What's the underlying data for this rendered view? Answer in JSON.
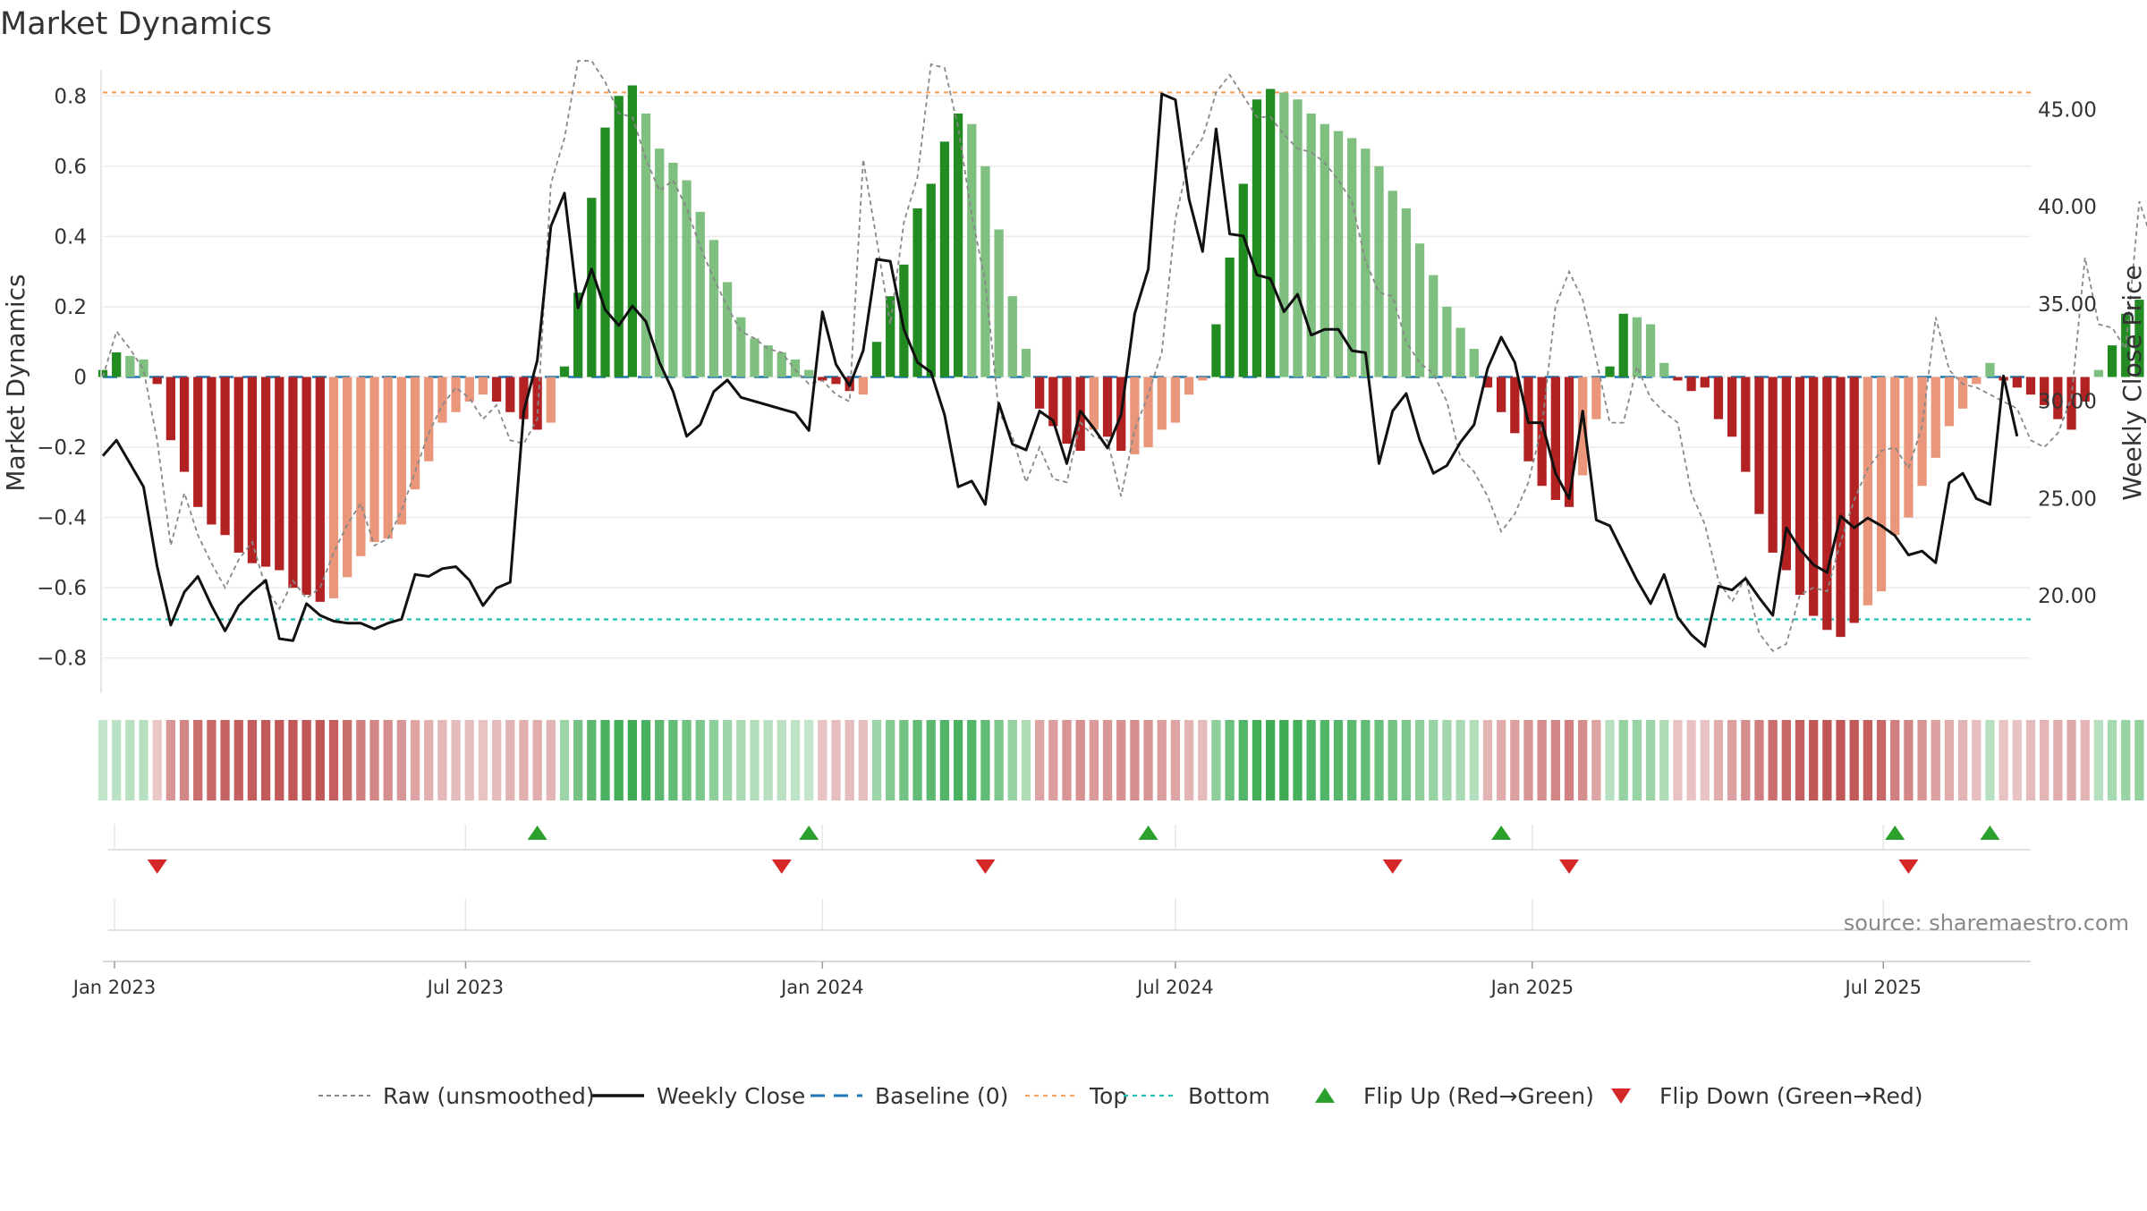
{
  "title": "Market Dynamics",
  "source": "source: sharemaestro.com",
  "colors": {
    "green_strong": "#228B22",
    "green_light": "#7FBF7F",
    "red_strong": "#B22222",
    "red_light": "#E9967A",
    "baseline": "#1f77b4",
    "top": "#f4a460",
    "bottom": "#20c0b0",
    "raw": "#888888",
    "close": "#111111",
    "flip_up": "#2ca02c",
    "flip_down": "#d62728"
  },
  "chart_data": {
    "type": "bar",
    "title": "Market Dynamics",
    "ylabel": "Market Dynamics",
    "y2label": "Weekly Close Price",
    "ylim": [
      -0.9,
      0.9
    ],
    "y2lim": [
      15.0,
      47.5
    ],
    "yticks": [
      -0.8,
      -0.6,
      -0.4,
      -0.2,
      0,
      0.2,
      0.4,
      0.6,
      0.8
    ],
    "ytick_labels": [
      "−0.8",
      "−0.6",
      "−0.4",
      "−0.2",
      "0",
      "0.2",
      "0.4",
      "0.6",
      "0.8"
    ],
    "y2ticks": [
      20,
      25,
      30,
      35,
      40,
      45
    ],
    "y2tick_labels": [
      "20.00",
      "25.00",
      "30.00",
      "35.00",
      "40.00",
      "45.00"
    ],
    "x_start": "2022-12-26",
    "x_end": "2025-09-15",
    "xticks": [
      "2023-01-01",
      "2023-07-01",
      "2024-01-01",
      "2024-07-01",
      "2025-01-01",
      "2025-07-01"
    ],
    "xtick_labels": [
      "Jan 2023",
      "Jul 2023",
      "Jan 2024",
      "Jul 2024",
      "Jan 2025",
      "Jul 2025"
    ],
    "top_level": 0.81,
    "bottom_level": -0.69,
    "baseline": 0,
    "bar_values": [
      0.02,
      0.07,
      0.06,
      0.05,
      -0.02,
      -0.18,
      -0.27,
      -0.37,
      -0.42,
      -0.45,
      -0.5,
      -0.53,
      -0.54,
      -0.55,
      -0.6,
      -0.62,
      -0.64,
      -0.63,
      -0.57,
      -0.51,
      -0.47,
      -0.46,
      -0.42,
      -0.32,
      -0.24,
      -0.13,
      -0.1,
      -0.07,
      -0.05,
      -0.07,
      -0.1,
      -0.12,
      -0.15,
      -0.13,
      0.03,
      0.24,
      0.51,
      0.71,
      0.8,
      0.83,
      0.75,
      0.65,
      0.61,
      0.56,
      0.47,
      0.39,
      0.27,
      0.17,
      0.11,
      0.09,
      0.07,
      0.05,
      0.02,
      -0.01,
      -0.02,
      -0.04,
      -0.05,
      0.1,
      0.23,
      0.32,
      0.48,
      0.55,
      0.67,
      0.75,
      0.72,
      0.6,
      0.42,
      0.23,
      0.08,
      -0.09,
      -0.14,
      -0.19,
      -0.21,
      -0.15,
      -0.17,
      -0.21,
      -0.22,
      -0.2,
      -0.15,
      -0.13,
      -0.05,
      -0.01,
      0.15,
      0.34,
      0.55,
      0.79,
      0.82,
      0.81,
      0.79,
      0.75,
      0.72,
      0.7,
      0.68,
      0.65,
      0.6,
      0.53,
      0.48,
      0.38,
      0.29,
      0.2,
      0.14,
      0.08,
      -0.03,
      -0.1,
      -0.16,
      -0.24,
      -0.31,
      -0.35,
      -0.37,
      -0.28,
      -0.12,
      0.03,
      0.18,
      0.17,
      0.15,
      0.04,
      -0.01,
      -0.04,
      -0.03,
      -0.12,
      -0.17,
      -0.27,
      -0.39,
      -0.5,
      -0.55,
      -0.62,
      -0.68,
      -0.72,
      -0.74,
      -0.7,
      -0.65,
      -0.61,
      -0.45,
      -0.4,
      -0.31,
      -0.23,
      -0.14,
      -0.09,
      -0.02,
      0.04,
      -0.01,
      -0.03,
      -0.05,
      -0.08,
      -0.12,
      -0.15,
      -0.07,
      0.02,
      0.09,
      0.18,
      0.22,
      0.28
    ],
    "bar_strong": [
      true,
      true,
      false,
      false,
      true,
      true,
      true,
      true,
      true,
      true,
      true,
      true,
      true,
      true,
      true,
      true,
      true,
      false,
      false,
      false,
      false,
      false,
      false,
      false,
      false,
      false,
      false,
      false,
      false,
      true,
      true,
      true,
      true,
      false,
      true,
      true,
      true,
      true,
      true,
      true,
      false,
      false,
      false,
      false,
      false,
      false,
      false,
      false,
      false,
      false,
      false,
      false,
      false,
      true,
      true,
      true,
      false,
      true,
      true,
      true,
      true,
      true,
      true,
      true,
      false,
      false,
      false,
      false,
      false,
      true,
      true,
      true,
      true,
      false,
      true,
      true,
      false,
      false,
      false,
      false,
      false,
      false,
      true,
      true,
      true,
      true,
      true,
      false,
      false,
      false,
      false,
      false,
      false,
      false,
      false,
      false,
      false,
      false,
      false,
      false,
      false,
      false,
      true,
      true,
      true,
      true,
      true,
      true,
      true,
      false,
      false,
      true,
      true,
      false,
      false,
      false,
      true,
      true,
      true,
      true,
      true,
      true,
      true,
      true,
      true,
      true,
      true,
      true,
      true,
      true,
      false,
      false,
      false,
      false,
      false,
      false,
      false,
      false,
      false,
      false,
      true,
      true,
      true,
      true,
      true,
      true,
      true,
      false,
      true,
      true,
      true,
      true,
      true
    ],
    "heat_levels": [
      0.12,
      0.18,
      0.2,
      0.2,
      0.12,
      0.45,
      0.55,
      0.7,
      0.75,
      0.78,
      0.8,
      0.82,
      0.83,
      0.84,
      0.85,
      0.86,
      0.86,
      0.8,
      0.7,
      0.6,
      0.55,
      0.5,
      0.45,
      0.35,
      0.28,
      0.22,
      0.2,
      0.18,
      0.16,
      0.2,
      0.25,
      0.28,
      0.3,
      0.25,
      0.35,
      0.6,
      0.75,
      0.85,
      0.9,
      0.92,
      0.85,
      0.75,
      0.7,
      0.62,
      0.55,
      0.45,
      0.35,
      0.28,
      0.22,
      0.2,
      0.18,
      0.15,
      0.12,
      0.15,
      0.18,
      0.2,
      0.18,
      0.35,
      0.5,
      0.6,
      0.7,
      0.75,
      0.8,
      0.85,
      0.8,
      0.7,
      0.55,
      0.4,
      0.25,
      0.35,
      0.4,
      0.45,
      0.48,
      0.42,
      0.44,
      0.48,
      0.5,
      0.45,
      0.4,
      0.35,
      0.25,
      0.2,
      0.45,
      0.65,
      0.8,
      0.9,
      0.92,
      0.92,
      0.88,
      0.82,
      0.8,
      0.78,
      0.75,
      0.7,
      0.65,
      0.6,
      0.55,
      0.45,
      0.38,
      0.32,
      0.28,
      0.22,
      0.25,
      0.3,
      0.38,
      0.45,
      0.5,
      0.55,
      0.58,
      0.5,
      0.35,
      0.2,
      0.4,
      0.38,
      0.36,
      0.25,
      0.15,
      0.15,
      0.15,
      0.3,
      0.38,
      0.5,
      0.6,
      0.7,
      0.75,
      0.8,
      0.84,
      0.86,
      0.86,
      0.84,
      0.8,
      0.75,
      0.6,
      0.55,
      0.45,
      0.38,
      0.3,
      0.25,
      0.18,
      0.2,
      0.15,
      0.15,
      0.2,
      0.25,
      0.3,
      0.32,
      0.25,
      0.2,
      0.3,
      0.38,
      0.42,
      0.48
    ],
    "raw_values": [
      0.0,
      0.13,
      0.08,
      0.02,
      -0.18,
      -0.48,
      -0.33,
      -0.45,
      -0.53,
      -0.6,
      -0.52,
      -0.47,
      -0.6,
      -0.66,
      -0.58,
      -0.63,
      -0.6,
      -0.5,
      -0.42,
      -0.36,
      -0.48,
      -0.46,
      -0.38,
      -0.27,
      -0.16,
      -0.08,
      -0.03,
      -0.06,
      -0.12,
      -0.08,
      -0.18,
      -0.19,
      -0.12,
      0.55,
      0.68,
      0.9,
      0.9,
      0.84,
      0.75,
      0.74,
      0.62,
      0.53,
      0.56,
      0.48,
      0.37,
      0.28,
      0.2,
      0.13,
      0.11,
      0.08,
      0.07,
      0.02,
      -0.02,
      -0.01,
      -0.05,
      -0.07,
      0.62,
      0.39,
      0.15,
      0.44,
      0.57,
      0.89,
      0.88,
      0.71,
      0.46,
      0.27,
      -0.1,
      -0.17,
      -0.3,
      -0.2,
      -0.29,
      -0.3,
      -0.13,
      -0.17,
      -0.18,
      -0.34,
      -0.15,
      -0.05,
      0.07,
      0.45,
      0.62,
      0.68,
      0.81,
      0.86,
      0.8,
      0.74,
      0.74,
      0.69,
      0.65,
      0.64,
      0.61,
      0.56,
      0.5,
      0.33,
      0.24,
      0.23,
      0.1,
      0.04,
      0.01,
      -0.07,
      -0.23,
      -0.27,
      -0.34,
      -0.44,
      -0.39,
      -0.3,
      -0.14,
      0.2,
      0.3,
      0.22,
      0.05,
      -0.13,
      -0.13,
      0.03,
      -0.06,
      -0.1,
      -0.13,
      -0.33,
      -0.42,
      -0.58,
      -0.64,
      -0.57,
      -0.73,
      -0.78,
      -0.76,
      -0.62,
      -0.6,
      -0.61,
      -0.47,
      -0.35,
      -0.26,
      -0.21,
      -0.2,
      -0.26,
      -0.14,
      0.17,
      0.02,
      -0.02,
      -0.03,
      -0.05,
      -0.07,
      -0.09,
      -0.18,
      -0.2,
      -0.16,
      -0.06,
      0.34,
      0.15,
      0.14,
      0.08,
      0.5,
      0.38
    ],
    "close_values": [
      27.2,
      28.0,
      26.8,
      25.6,
      21.5,
      18.5,
      20.2,
      21.0,
      19.5,
      18.2,
      19.5,
      20.2,
      20.8,
      17.8,
      17.7,
      19.6,
      19.0,
      18.7,
      18.6,
      18.6,
      18.3,
      18.6,
      18.8,
      21.1,
      21.0,
      21.4,
      21.5,
      20.8,
      19.5,
      20.4,
      20.7,
      29.5,
      32.1,
      39.0,
      40.7,
      34.8,
      36.8,
      34.7,
      33.9,
      34.9,
      34.1,
      32.0,
      30.5,
      28.2,
      28.8,
      30.5,
      31.1,
      30.2,
      30.0,
      29.8,
      29.6,
      29.4,
      28.5,
      34.6,
      31.9,
      30.8,
      32.6,
      37.3,
      37.2,
      33.7,
      32.0,
      31.5,
      29.3,
      25.6,
      25.9,
      24.7,
      29.9,
      27.8,
      27.5,
      29.5,
      29.0,
      26.8,
      29.5,
      28.6,
      27.6,
      29.3,
      34.5,
      36.8,
      45.8,
      45.5,
      40.4,
      37.7,
      44.0,
      38.6,
      38.5,
      36.5,
      36.3,
      34.6,
      35.5,
      33.4,
      33.7,
      33.7,
      32.6,
      32.5,
      26.8,
      29.5,
      30.4,
      28.0,
      26.3,
      26.7,
      27.9,
      28.8,
      31.7,
      33.3,
      32.0,
      28.9,
      28.9,
      26.3,
      25.0,
      29.5,
      23.9,
      23.6,
      22.2,
      20.8,
      19.6,
      21.1,
      18.9,
      18.0,
      17.4,
      20.5,
      20.3,
      20.9,
      19.9,
      19.0,
      23.5,
      22.4,
      21.6,
      21.2,
      24.1,
      23.5,
      24.0,
      23.6,
      23.1,
      22.1,
      22.3,
      21.7,
      25.8,
      26.3,
      25.0,
      24.7,
      31.3,
      28.2
    ],
    "flip_up": [
      "2023-08-07",
      "2023-12-25",
      "2024-06-17",
      "2024-12-16",
      "2025-07-07",
      "2025-08-25"
    ],
    "flip_down": [
      "2023-01-23",
      "2023-12-11",
      "2024-03-25",
      "2024-10-21",
      "2025-01-20",
      "2025-07-14"
    ],
    "legend": [
      {
        "key": "raw",
        "label": "Raw (unsmoothed)"
      },
      {
        "key": "close",
        "label": "Weekly Close"
      },
      {
        "key": "baseline",
        "label": "Baseline (0)"
      },
      {
        "key": "top",
        "label": "Top"
      },
      {
        "key": "bottom",
        "label": "Bottom"
      },
      {
        "key": "flip_up",
        "label": "Flip Up (Red→Green)"
      },
      {
        "key": "flip_down",
        "label": "Flip Down (Green→Red)"
      }
    ]
  }
}
